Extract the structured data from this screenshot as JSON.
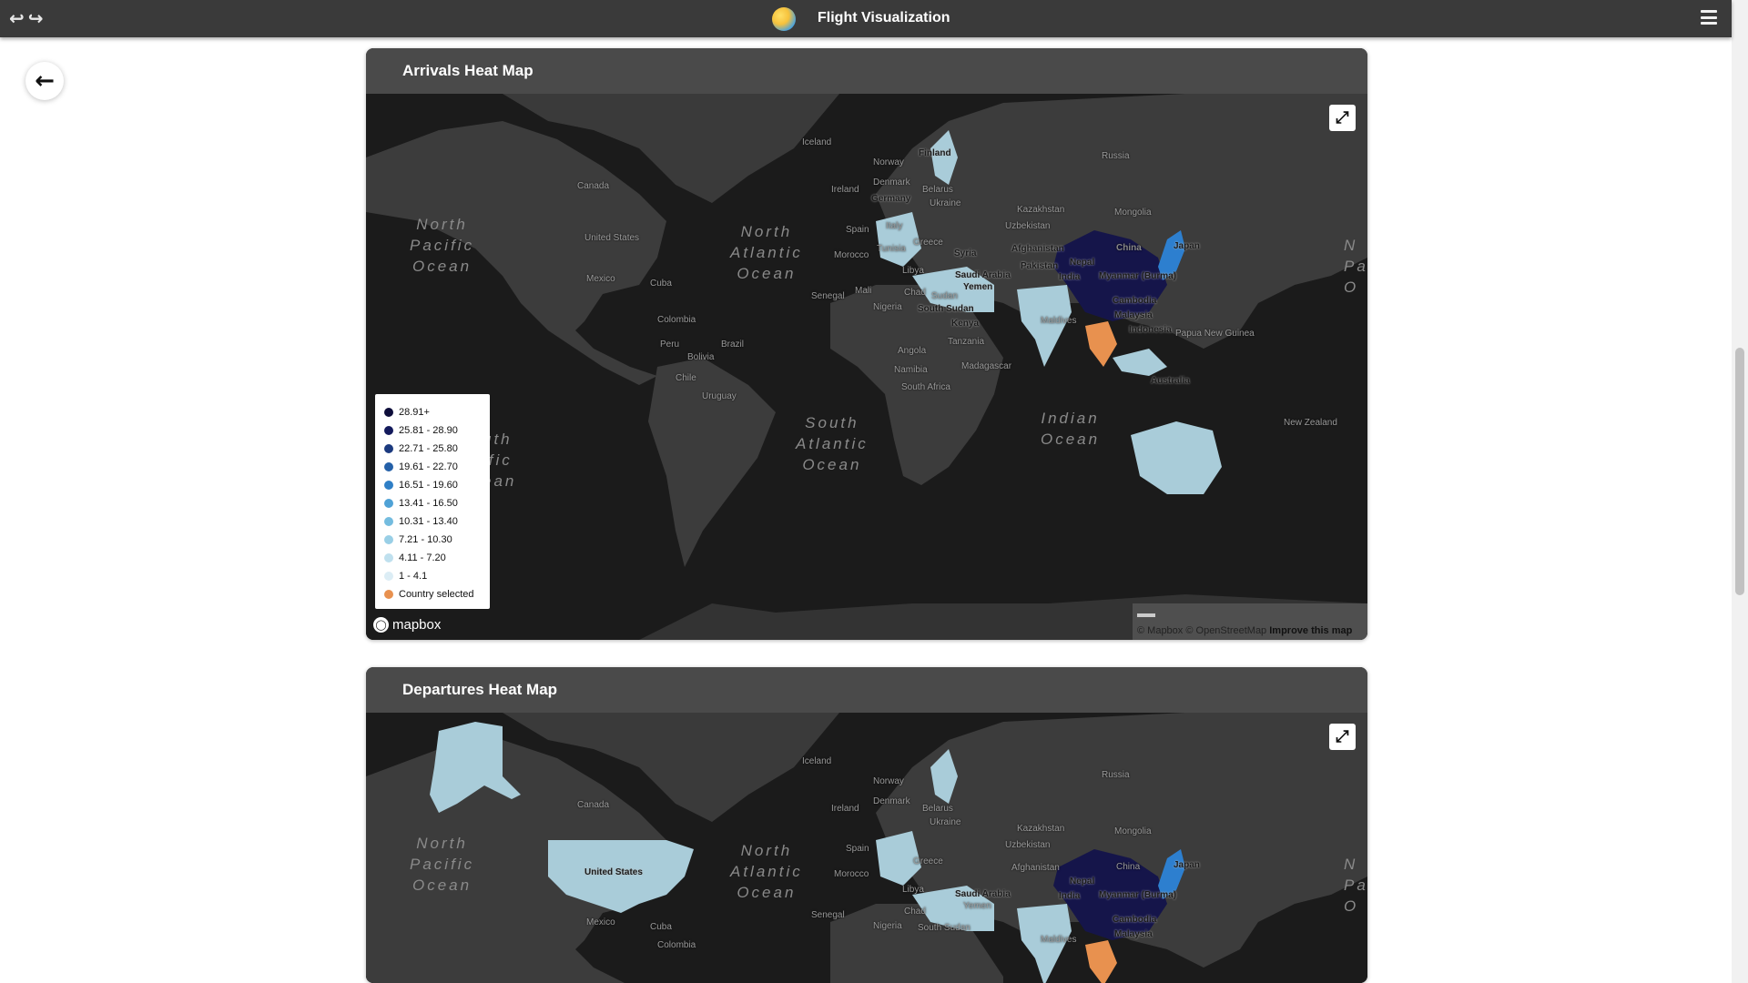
{
  "header": {
    "title": "Flight Visualization",
    "nav_back_glyph": "↩",
    "nav_forward_glyph": "↪",
    "logo_icon": "globe-logo-icon",
    "menu_icon": "hamburger-menu-icon"
  },
  "back_button": {
    "icon": "arrow-left-icon",
    "glyph": "🡐"
  },
  "colors": {
    "topbar": "#3a3a3a",
    "card_header": "#4a4a4a",
    "land": "#3c3c3c",
    "water": "#1b1b1b",
    "china": "#15154a",
    "japan": "#2d7fcf",
    "light_country": "#a9ccd9",
    "selected_country": "#e8914f"
  },
  "maps": [
    {
      "title": "Arrivals Heat Map",
      "fullscreen_icon": "expand-icon",
      "labels": {
        "iceland": "Iceland",
        "norway": "Norway",
        "russia": "Russia",
        "finland": "Finland",
        "canada": "Canada",
        "ireland": "Ireland",
        "denmark": "Denmark",
        "belarus": "Belarus",
        "germany": "Germany",
        "ukraine": "Ukraine",
        "kazakhstan": "Kazakhstan",
        "mongolia": "Mongolia",
        "united_states": "United States",
        "spain": "Spain",
        "italy": "Italy",
        "uzbekistan": "Uzbekistan",
        "greece": "Greece",
        "china": "China",
        "japan": "Japan",
        "morocco": "Morocco",
        "tunisia": "Tunisia",
        "afghanistan": "Afghanistan",
        "syria": "Syria",
        "mexico": "Mexico",
        "cuba": "Cuba",
        "libya": "Libya",
        "saudi_arabia": "Saudi Arabia",
        "pakistan": "Pakistan",
        "nepal": "Nepal",
        "india": "India",
        "myanmar": "Myanmar (Burma)",
        "senegal": "Senegal",
        "mali": "Mali",
        "chad": "Chad",
        "sudan": "Sudan",
        "yemen": "Yemen",
        "nigeria": "Nigeria",
        "cambodia": "Cambodia",
        "south_sudan": "South Sudan",
        "maldives": "Maldives",
        "malaysia": "Malaysia",
        "colombia": "Colombia",
        "kenya": "Kenya",
        "indonesia": "Indonesia",
        "papua": "Papua New Guinea",
        "peru": "Peru",
        "brazil": "Brazil",
        "tanzania": "Tanzania",
        "bolivia": "Bolivia",
        "angola": "Angola",
        "namibia": "Namibia",
        "madagascar": "Madagascar",
        "australia": "Australia",
        "chile": "Chile",
        "south_africa": "South Africa",
        "uruguay": "Uruguay",
        "new_zealand": "New Zealand",
        "north_pacific": "North\nPacific\nOcean",
        "north_atlantic": "North\nAtlantic\nOcean",
        "south_atlantic": "South\nAtlantic\nOcean",
        "indian_ocean": "Indian\nOcean",
        "south_pacific_partial": "uth\nific\nean",
        "n_edge": "N\nPa\nO"
      },
      "legend": [
        {
          "label": "28.91+",
          "color": "#0d0d3a"
        },
        {
          "label": "25.81 - 28.90",
          "color": "#131a5c"
        },
        {
          "label": "22.71 - 25.80",
          "color": "#1c3a7f"
        },
        {
          "label": "19.61 - 22.70",
          "color": "#2460a8"
        },
        {
          "label": "16.51 - 19.60",
          "color": "#2f7fc6"
        },
        {
          "label": "13.41 - 16.50",
          "color": "#4fa2d6"
        },
        {
          "label": "10.31 - 13.40",
          "color": "#74bcdf"
        },
        {
          "label": "7.21 - 10.30",
          "color": "#99cfe6"
        },
        {
          "label": "4.11 - 7.20",
          "color": "#bfe0ee"
        },
        {
          "label": "1 - 4.1",
          "color": "#dcedf5"
        },
        {
          "label": "Country selected",
          "color": "#e8914f"
        }
      ],
      "mapbox": "mapbox",
      "attribution": {
        "mapbox": "© Mapbox",
        "osm": "© OpenStreetMap",
        "improve": "Improve this map"
      }
    },
    {
      "title": "Departures Heat Map",
      "fullscreen_icon": "expand-icon",
      "labels": {
        "iceland": "Iceland",
        "norway": "Norway",
        "russia": "Russia",
        "canada": "Canada",
        "ireland": "Ireland",
        "denmark": "Denmark",
        "belarus": "Belarus",
        "ukraine": "Ukraine",
        "kazakhstan": "Kazakhstan",
        "mongolia": "Mongolia",
        "united_states": "United States",
        "spain": "Spain",
        "uzbekistan": "Uzbekistan",
        "greece": "Greece",
        "china": "China",
        "japan": "Japan",
        "morocco": "Morocco",
        "afghanistan": "Afghanistan",
        "mexico": "Mexico",
        "cuba": "Cuba",
        "libya": "Libya",
        "saudi_arabia": "Saudi Arabia",
        "nepal": "Nepal",
        "india": "India",
        "myanmar": "Myanmar (Burma)",
        "senegal": "Senegal",
        "chad": "Chad",
        "yemen": "Yemen",
        "nigeria": "Nigeria",
        "south_sudan": "South Sudan",
        "maldives": "Maldives",
        "malaysia": "Malaysia",
        "colombia": "Colombia",
        "cambodia": "Cambodia",
        "north_pacific": "North\nPacific\nOcean",
        "north_atlantic": "North\nAtlantic\nOcean",
        "n_edge": "N\nPa\nO"
      }
    }
  ]
}
